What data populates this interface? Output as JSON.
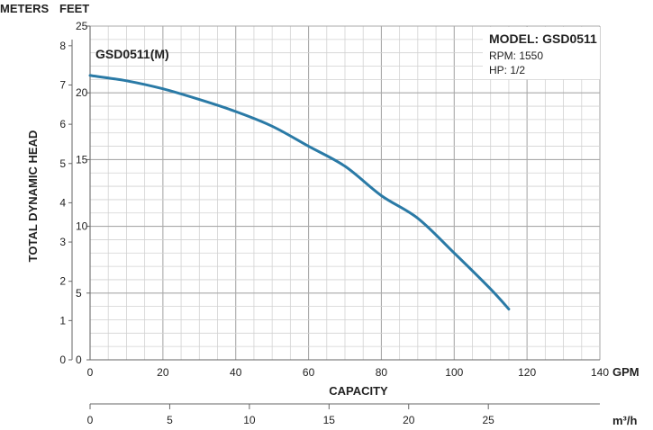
{
  "chart_data": {
    "type": "line",
    "title": "",
    "model_box": {
      "model": "MODEL: GSD0511",
      "rpm": "RPM: 1550",
      "hp": "HP: 1/2"
    },
    "units": {
      "meters": "METERS",
      "feet": "FEET",
      "gpm": "GPM",
      "m3h": "m³/h"
    },
    "ylabel": "TOTAL DYNAMIC HEAD",
    "xlabel": "CAPACITY",
    "xlim_gpm": [
      0,
      140
    ],
    "ylim_feet": [
      0,
      25
    ],
    "ylim_meters": [
      0,
      8.5
    ],
    "xlim_m3h": [
      0,
      32
    ],
    "grid": true,
    "gpm_ticks": [
      "0",
      "20",
      "40",
      "60",
      "80",
      "100",
      "120",
      "140"
    ],
    "feet_ticks": [
      "0",
      "5",
      "10",
      "15",
      "20",
      "25"
    ],
    "meter_ticks": [
      "0",
      "1",
      "2",
      "3",
      "4",
      "5",
      "6",
      "7",
      "8"
    ],
    "m3h_ticks": [
      "0",
      "5",
      "10",
      "15",
      "20",
      "25"
    ],
    "series": [
      {
        "name": "GSD0511(M)",
        "color": "#2a7aa6",
        "x": [
          0,
          10,
          20,
          30,
          40,
          50,
          60,
          70,
          80,
          90,
          100,
          110,
          115
        ],
        "y": [
          21.3,
          20.9,
          20.3,
          19.5,
          18.6,
          17.5,
          16.0,
          14.5,
          12.3,
          10.6,
          8.0,
          5.3,
          3.8
        ]
      }
    ]
  }
}
